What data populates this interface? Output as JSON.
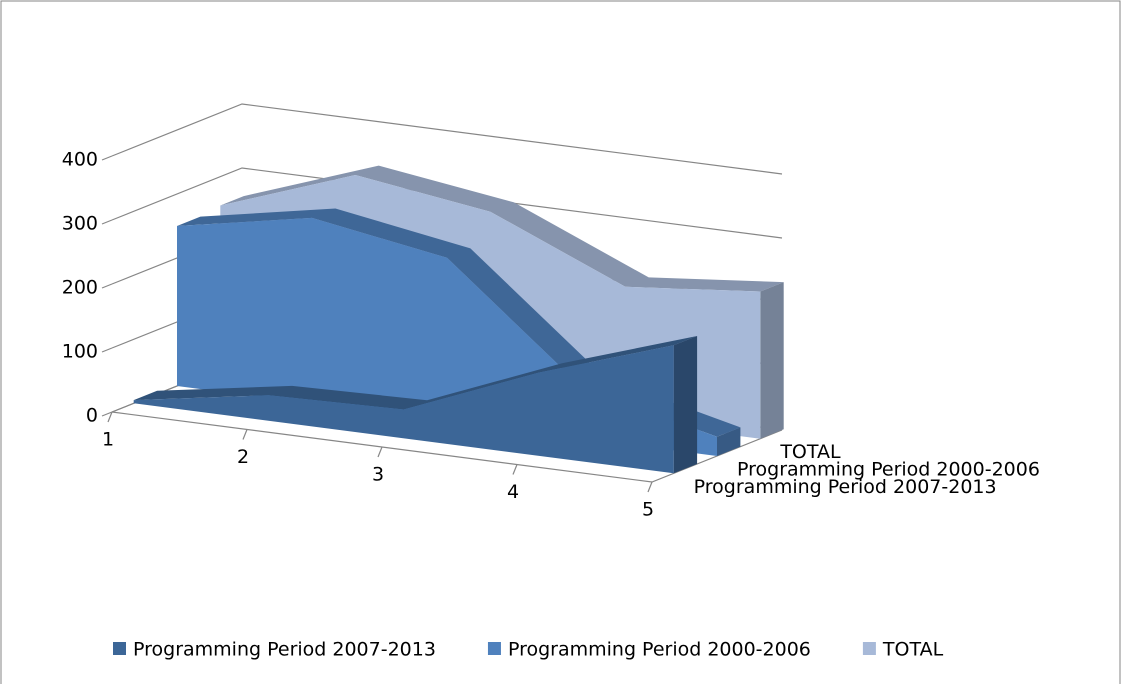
{
  "chart_data": {
    "type": "area",
    "categories": [
      "1",
      "2",
      "3",
      "4",
      "5"
    ],
    "series": [
      {
        "name": "Programming Period 2007-2013",
        "color": "#3c6697",
        "values": [
          5,
          40,
          45,
          130,
          200
        ]
      },
      {
        "name": "Programming Period 2000-2006",
        "color": "#4f81bd",
        "values": [
          250,
          290,
          255,
          80,
          30
        ]
      },
      {
        "name": "TOTAL",
        "color": "#a7b9d8",
        "values": [
          255,
          330,
          300,
          210,
          230
        ]
      }
    ],
    "ylim": [
      0,
      400
    ],
    "yticks": [
      0,
      100,
      200,
      300,
      400
    ],
    "grid": true,
    "legend": "bottom"
  }
}
